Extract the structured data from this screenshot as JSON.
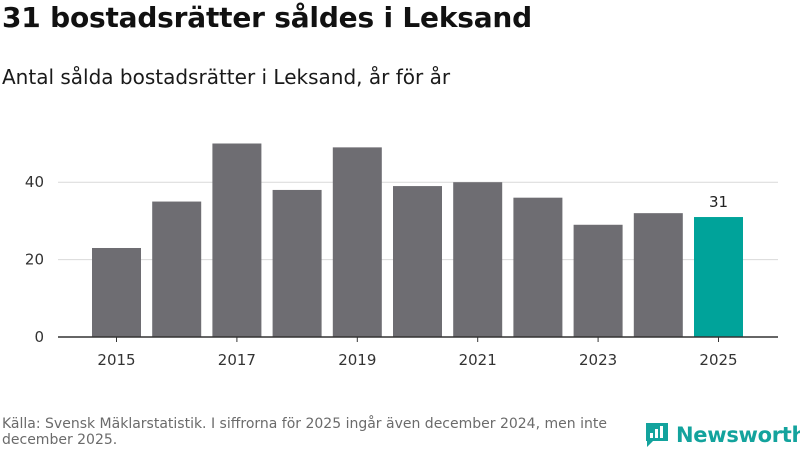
{
  "title": "31 bostadsrätter såldes i Leksand",
  "subtitle": "Antal sålda bostadsrätter i Leksand, år för år",
  "footer": "Källa: Svensk Mäklarstatistik. I siffrorna för 2025 ingår även december 2024, men inte december 2025.",
  "brand": {
    "name": "Newsworthy",
    "icon": "newsworthy-logo-icon"
  },
  "colors": {
    "bar": "#6e6d72",
    "highlight": "#00a39a",
    "grid": "#d9d9d9",
    "axis": "#333333",
    "text": "#333333"
  },
  "chart_data": {
    "type": "bar",
    "title": "31 bostadsrätter såldes i Leksand",
    "subtitle": "Antal sålda bostadsrätter i Leksand, år för år",
    "xlabel": "",
    "ylabel": "",
    "categories": [
      "2015",
      "2016",
      "2017",
      "2018",
      "2019",
      "2020",
      "2021",
      "2022",
      "2023",
      "2024",
      "2025"
    ],
    "values": [
      23,
      35,
      50,
      38,
      49,
      39,
      40,
      36,
      29,
      32,
      31
    ],
    "highlight_index": 10,
    "x_tick_labels": [
      "2015",
      "2017",
      "2019",
      "2021",
      "2023",
      "2025"
    ],
    "y_ticks": [
      0,
      20,
      40
    ],
    "ylim": [
      0,
      50
    ],
    "grid": true,
    "annotations": [
      {
        "category": "2025",
        "text": "31"
      }
    ]
  }
}
